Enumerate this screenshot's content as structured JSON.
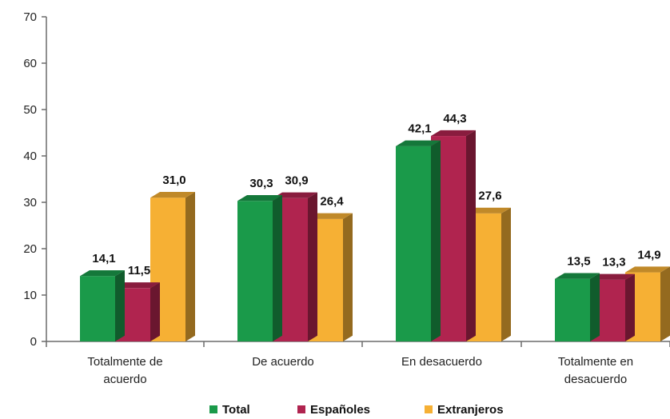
{
  "chart_data": {
    "type": "bar",
    "categories": [
      [
        "Totalmente de",
        "acuerdo"
      ],
      [
        "De acuerdo"
      ],
      [
        "En desacuerdo"
      ],
      [
        "Totalmente en",
        "desacuerdo"
      ]
    ],
    "series": [
      {
        "name": "Total",
        "values": [
          14.1,
          30.3,
          42.1,
          13.5
        ],
        "labels": [
          "14,1",
          "30,3",
          "42,1",
          "13,5"
        ],
        "color": "#1a9a4a"
      },
      {
        "name": "Españoles",
        "values": [
          11.5,
          30.9,
          44.3,
          13.3
        ],
        "labels": [
          "11,5",
          "30,9",
          "44,3",
          "13,3"
        ],
        "color": "#b0244f"
      },
      {
        "name": "Extranjeros",
        "values": [
          31.0,
          26.4,
          27.6,
          14.9
        ],
        "labels": [
          "31,0",
          "26,4",
          "27,6",
          "14,9"
        ],
        "color": "#f6b034"
      }
    ],
    "y_ticks": [
      "0",
      "10",
      "20",
      "30",
      "40",
      "50",
      "60",
      "70"
    ],
    "ylim": [
      0,
      70
    ],
    "legend_position": "bottom",
    "grid": false,
    "style": "3d-column"
  }
}
